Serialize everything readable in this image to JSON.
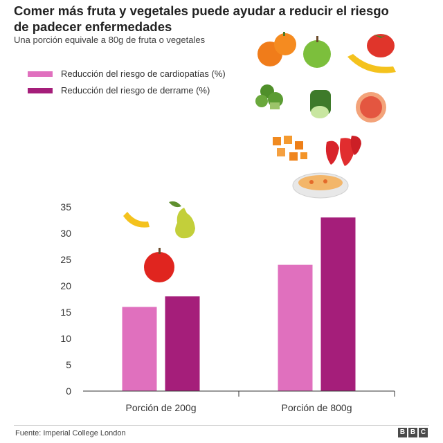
{
  "header": {
    "title": "Comer más fruta y vegetales puede ayudar a reducir el riesgo de padecer enfermedades",
    "subtitle": "Una porción equivale a 80g de fruta o vegetales"
  },
  "legend": [
    {
      "label": "Reducción del riesgo de cardiopatías (%)",
      "color": "#e070be"
    },
    {
      "label": "Reducción del riesgo de derrame (%)",
      "color": "#a51e7a"
    }
  ],
  "chart_data": {
    "type": "bar",
    "categories": [
      "Porción de 200g",
      "Porción de 800g"
    ],
    "series": [
      {
        "name": "Reducción del riesgo de cardiopatías (%)",
        "values": [
          16,
          24
        ],
        "color": "#e070be"
      },
      {
        "name": "Reducción del riesgo de derrame (%)",
        "values": [
          18,
          33
        ],
        "color": "#a51e7a"
      }
    ],
    "ylim": [
      0,
      35
    ],
    "yticks": [
      0,
      5,
      10,
      15,
      20,
      25,
      30,
      35
    ],
    "grid": false,
    "legend_position": "top-left",
    "xlabel": "",
    "ylabel": ""
  },
  "footer": {
    "source": "Fuente: Imperial College London",
    "logo_letters": [
      "B",
      "B",
      "C"
    ]
  },
  "illustrations": {
    "icons": [
      "orange-icon",
      "apple-green-icon",
      "tomato-icon",
      "banana-icon",
      "broccoli-icon",
      "cucumber-icon",
      "grapefruit-icon",
      "carrot-pieces-icon",
      "strawberries-icon",
      "soup-bowl-icon",
      "banana-icon",
      "pear-icon",
      "apple-red-icon"
    ]
  }
}
